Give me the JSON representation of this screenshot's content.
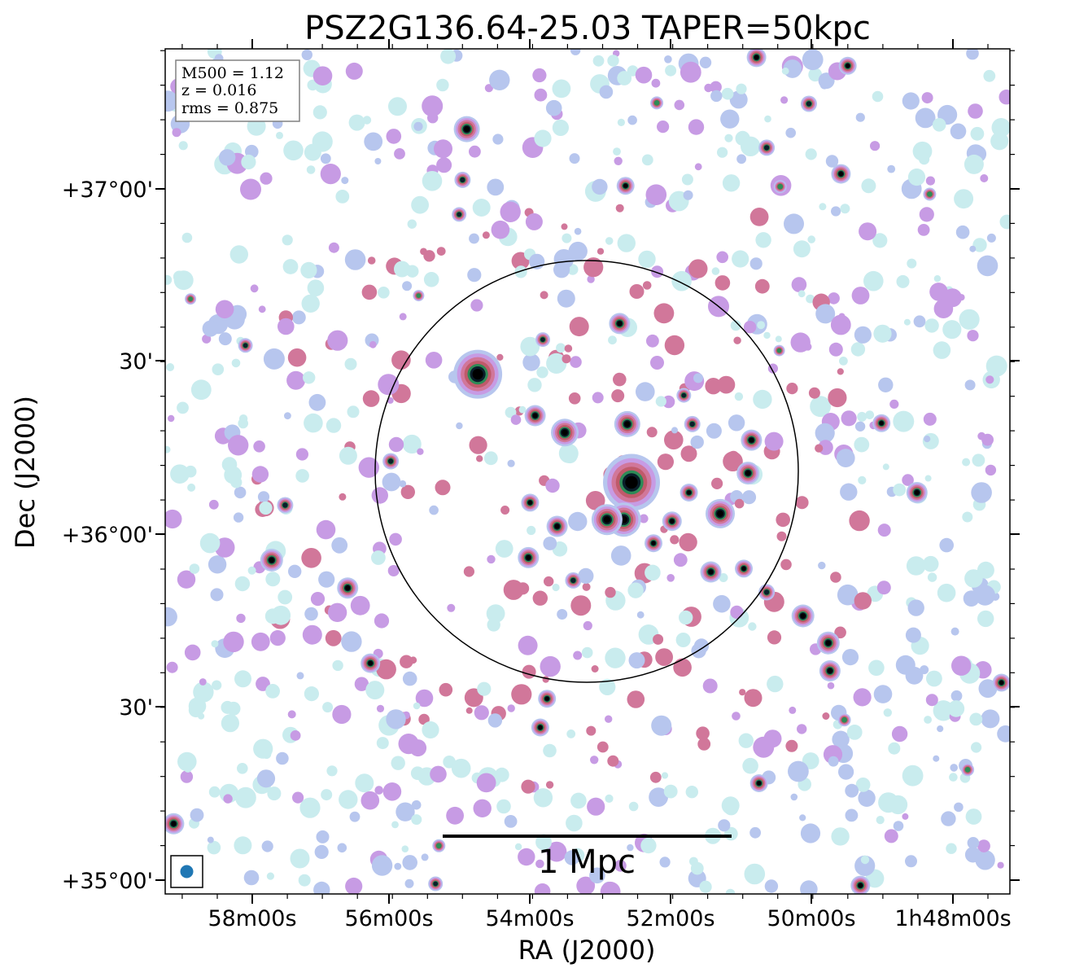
{
  "chart_data": {
    "type": "heatmap",
    "title": "PSZ2G136.64-25.03 TAPER=50kpc",
    "xlabel": "RA (J2000)",
    "ylabel": "Dec (J2000)",
    "x_ticks": [
      "58m00s",
      "56m00s",
      "54m00s",
      "52m00s",
      "50m00s",
      "1h48m00s"
    ],
    "y_ticks": [
      "+37°00'",
      "30'",
      "+36°00'",
      "30'",
      "+35°00'"
    ],
    "info": {
      "m500": "M500 = 1.12",
      "z": "z = 0.016",
      "rms": "rms = 0.875"
    },
    "scalebar_label": "1 Mpc",
    "colormap": [
      "#ffffff",
      "#c9ecee",
      "#b7c6ee",
      "#c79be4",
      "#d1779a",
      "#c05a6a",
      "#2e8b57",
      "#0a1e2a",
      "#000000"
    ],
    "beam_color": "#1f77b4",
    "sources": [
      {
        "x": 0.357,
        "y": 0.095,
        "s": 3.2
      },
      {
        "x": 0.352,
        "y": 0.155,
        "s": 2.0
      },
      {
        "x": 0.348,
        "y": 0.196,
        "s": 1.8
      },
      {
        "x": 0.545,
        "y": 0.162,
        "s": 2.2
      },
      {
        "x": 0.7,
        "y": 0.01,
        "s": 2.4
      },
      {
        "x": 0.808,
        "y": 0.02,
        "s": 2.2
      },
      {
        "x": 0.762,
        "y": 0.065,
        "s": 2.0
      },
      {
        "x": 0.712,
        "y": 0.117,
        "s": 2.0
      },
      {
        "x": 0.8,
        "y": 0.148,
        "s": 2.4
      },
      {
        "x": 0.582,
        "y": 0.064,
        "s": 1.6
      },
      {
        "x": 0.728,
        "y": 0.163,
        "s": 1.6
      },
      {
        "x": 0.905,
        "y": 0.172,
        "s": 1.6
      },
      {
        "x": 0.37,
        "y": 0.385,
        "s": 6.0
      },
      {
        "x": 0.438,
        "y": 0.434,
        "s": 2.6
      },
      {
        "x": 0.473,
        "y": 0.454,
        "s": 3.4
      },
      {
        "x": 0.547,
        "y": 0.444,
        "s": 3.2
      },
      {
        "x": 0.538,
        "y": 0.325,
        "s": 2.6
      },
      {
        "x": 0.447,
        "y": 0.344,
        "s": 1.8
      },
      {
        "x": 0.552,
        "y": 0.513,
        "s": 7.0
      },
      {
        "x": 0.543,
        "y": 0.557,
        "s": 4.2
      },
      {
        "x": 0.523,
        "y": 0.557,
        "s": 3.8
      },
      {
        "x": 0.657,
        "y": 0.55,
        "s": 3.6
      },
      {
        "x": 0.69,
        "y": 0.502,
        "s": 2.8
      },
      {
        "x": 0.694,
        "y": 0.463,
        "s": 2.6
      },
      {
        "x": 0.62,
        "y": 0.525,
        "s": 2.2
      },
      {
        "x": 0.6,
        "y": 0.559,
        "s": 2.4
      },
      {
        "x": 0.578,
        "y": 0.585,
        "s": 2.2
      },
      {
        "x": 0.624,
        "y": 0.444,
        "s": 2.0
      },
      {
        "x": 0.614,
        "y": 0.41,
        "s": 1.8
      },
      {
        "x": 0.646,
        "y": 0.619,
        "s": 2.6
      },
      {
        "x": 0.685,
        "y": 0.615,
        "s": 2.2
      },
      {
        "x": 0.712,
        "y": 0.643,
        "s": 2.0
      },
      {
        "x": 0.464,
        "y": 0.565,
        "s": 2.6
      },
      {
        "x": 0.432,
        "y": 0.537,
        "s": 2.2
      },
      {
        "x": 0.43,
        "y": 0.602,
        "s": 2.6
      },
      {
        "x": 0.483,
        "y": 0.629,
        "s": 2.0
      },
      {
        "x": 0.267,
        "y": 0.488,
        "s": 2.0
      },
      {
        "x": 0.142,
        "y": 0.54,
        "s": 2.0
      },
      {
        "x": 0.126,
        "y": 0.605,
        "s": 2.8
      },
      {
        "x": 0.216,
        "y": 0.638,
        "s": 2.6
      },
      {
        "x": 0.243,
        "y": 0.727,
        "s": 2.4
      },
      {
        "x": 0.01,
        "y": 0.917,
        "s": 2.6
      },
      {
        "x": 0.755,
        "y": 0.671,
        "s": 2.8
      },
      {
        "x": 0.785,
        "y": 0.703,
        "s": 2.8
      },
      {
        "x": 0.787,
        "y": 0.736,
        "s": 2.6
      },
      {
        "x": 0.89,
        "y": 0.525,
        "s": 2.6
      },
      {
        "x": 0.848,
        "y": 0.443,
        "s": 2.2
      },
      {
        "x": 0.452,
        "y": 0.769,
        "s": 2.2
      },
      {
        "x": 0.444,
        "y": 0.803,
        "s": 2.2
      },
      {
        "x": 0.703,
        "y": 0.869,
        "s": 2.2
      },
      {
        "x": 0.823,
        "y": 0.99,
        "s": 2.4
      },
      {
        "x": 0.99,
        "y": 0.75,
        "s": 2.2
      },
      {
        "x": 0.32,
        "y": 0.988,
        "s": 1.8
      },
      {
        "x": 0.324,
        "y": 0.943,
        "s": 1.6
      },
      {
        "x": 0.804,
        "y": 0.794,
        "s": 1.6
      },
      {
        "x": 0.95,
        "y": 0.853,
        "s": 1.6
      },
      {
        "x": 0.095,
        "y": 0.351,
        "s": 1.8
      },
      {
        "x": 0.3,
        "y": 0.292,
        "s": 1.4
      },
      {
        "x": 0.03,
        "y": 0.296,
        "s": 1.4
      },
      {
        "x": 0.727,
        "y": 0.357,
        "s": 1.4
      }
    ]
  }
}
